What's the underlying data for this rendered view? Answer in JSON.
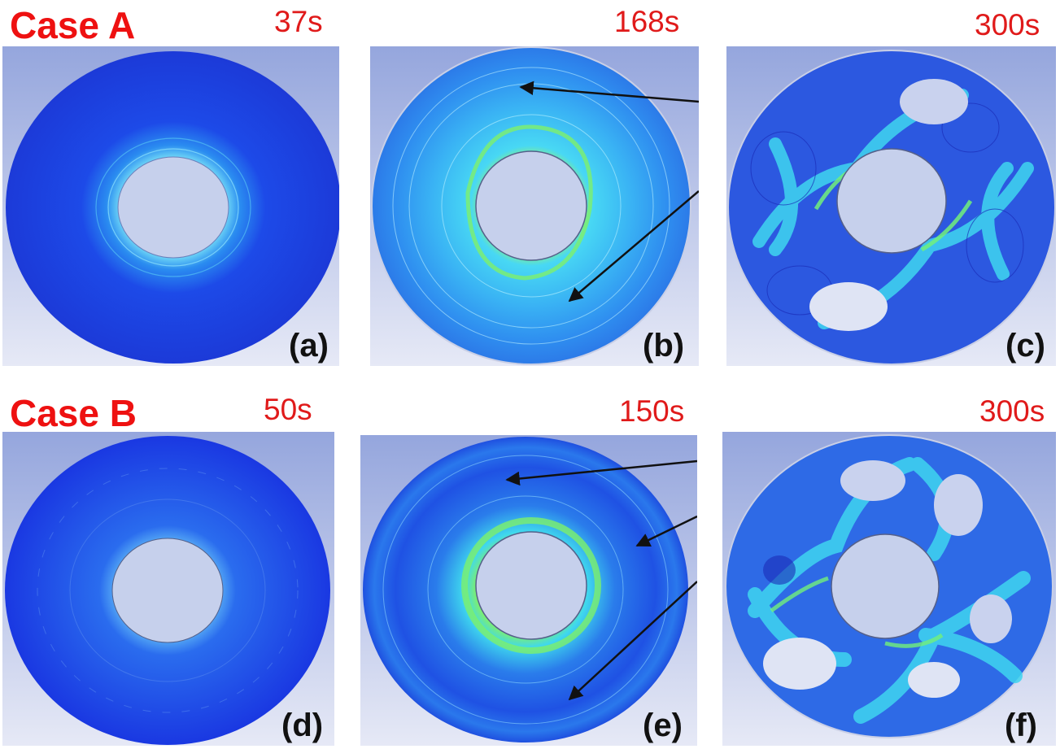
{
  "rows": [
    {
      "case_label": "Case A",
      "panels": [
        {
          "time": "37s",
          "label": "(a)"
        },
        {
          "time": "168s",
          "label": "(b)"
        },
        {
          "time": "300s",
          "label": "(c)"
        }
      ]
    },
    {
      "case_label": "Case B",
      "panels": [
        {
          "time": "50s",
          "label": "(d)"
        },
        {
          "time": "150s",
          "label": "(e)"
        },
        {
          "time": "300s",
          "label": "(f)"
        }
      ]
    }
  ],
  "colors": {
    "title_red": "#ee1111",
    "background_top": "#9aa9dc",
    "background_bottom": "#e4e8f6",
    "deep_blue": "#1f3ee6",
    "cyan": "#38d6f0",
    "green": "#4cf07a"
  }
}
